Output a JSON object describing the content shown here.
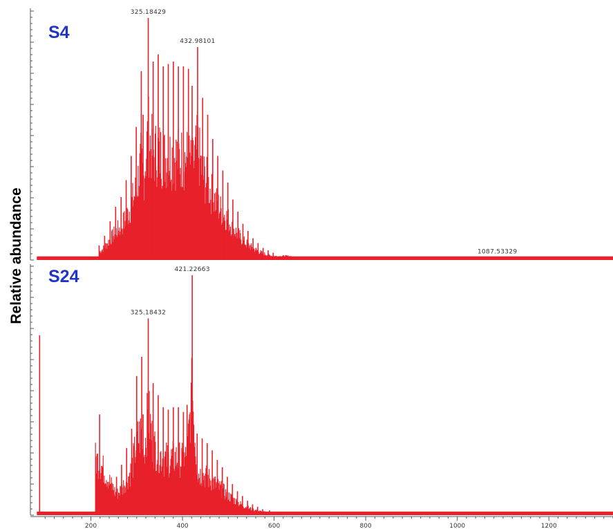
{
  "chart_data": {
    "type": "spectrum",
    "ylabel": "Relative abundance",
    "xlabel": "",
    "xlim": [
      80,
      1340
    ],
    "xticks": [
      200,
      400,
      600,
      800,
      1000,
      1200
    ],
    "series_color": "#e8202a",
    "label_color": "#1f35c8",
    "panels": [
      {
        "name": "S4",
        "peak_labels": [
          {
            "text": "325.18429",
            "mz": 325.18,
            "intensity": 1.0
          },
          {
            "text": "432.98101",
            "mz": 432.98,
            "intensity": 0.88
          },
          {
            "text": "1087.53329",
            "mz": 1087.53,
            "intensity": 0.01
          }
        ],
        "envelope": {
          "start": 200,
          "end": 640,
          "peak_mz": 370,
          "spacing": 11,
          "min_width": 6,
          "noise_level": 0.03
        },
        "peaks": [
          [
            218,
            0.06
          ],
          [
            230,
            0.1
          ],
          [
            242,
            0.16
          ],
          [
            254,
            0.22
          ],
          [
            266,
            0.26
          ],
          [
            277,
            0.33
          ],
          [
            288,
            0.43
          ],
          [
            299,
            0.55
          ],
          [
            310,
            0.78
          ],
          [
            314,
            0.6
          ],
          [
            325.18,
            1.0
          ],
          [
            336,
            0.82
          ],
          [
            347,
            0.85
          ],
          [
            358,
            0.8
          ],
          [
            369,
            0.81
          ],
          [
            380,
            0.82
          ],
          [
            391,
            0.8
          ],
          [
            402,
            0.8
          ],
          [
            413,
            0.79
          ],
          [
            421,
            0.72
          ],
          [
            432.98,
            0.88
          ],
          [
            444,
            0.67
          ],
          [
            455,
            0.6
          ],
          [
            466,
            0.5
          ],
          [
            477,
            0.43
          ],
          [
            488,
            0.37
          ],
          [
            499,
            0.32
          ],
          [
            510,
            0.25
          ],
          [
            521,
            0.2
          ],
          [
            532,
            0.15
          ],
          [
            543,
            0.12
          ],
          [
            554,
            0.09
          ],
          [
            565,
            0.07
          ],
          [
            576,
            0.05
          ],
          [
            587,
            0.04
          ],
          [
            598,
            0.03
          ],
          [
            1087.53,
            0.012
          ]
        ]
      },
      {
        "name": "S24",
        "peak_labels": [
          {
            "text": "421.22663",
            "mz": 421.23,
            "intensity": 1.0
          },
          {
            "text": "325.18432",
            "mz": 325.18,
            "intensity": 0.82
          }
        ],
        "envelope": {
          "start": 210,
          "end": 660,
          "peak_mz": 380,
          "spacing": 11,
          "min_width": 6,
          "noise_level": 0.03
        },
        "peaks": [
          [
            88,
            0.75
          ],
          [
            219,
            0.42
          ],
          [
            256,
            0.16
          ],
          [
            267,
            0.21
          ],
          [
            278,
            0.28
          ],
          [
            289,
            0.36
          ],
          [
            300,
            0.58
          ],
          [
            311,
            0.66
          ],
          [
            314,
            0.42
          ],
          [
            325.18,
            0.82
          ],
          [
            336,
            0.55
          ],
          [
            347,
            0.5
          ],
          [
            358,
            0.45
          ],
          [
            369,
            0.44
          ],
          [
            380,
            0.45
          ],
          [
            391,
            0.45
          ],
          [
            402,
            0.43
          ],
          [
            410,
            0.46
          ],
          [
            421.23,
            1.0
          ],
          [
            432,
            0.34
          ],
          [
            443,
            0.32
          ],
          [
            454,
            0.3
          ],
          [
            465,
            0.27
          ],
          [
            476,
            0.23
          ],
          [
            487,
            0.2
          ],
          [
            498,
            0.16
          ],
          [
            509,
            0.13
          ],
          [
            520,
            0.1
          ],
          [
            531,
            0.08
          ],
          [
            542,
            0.06
          ],
          [
            553,
            0.045
          ],
          [
            564,
            0.035
          ],
          [
            575,
            0.025
          ],
          [
            590,
            0.02
          ]
        ]
      }
    ]
  }
}
